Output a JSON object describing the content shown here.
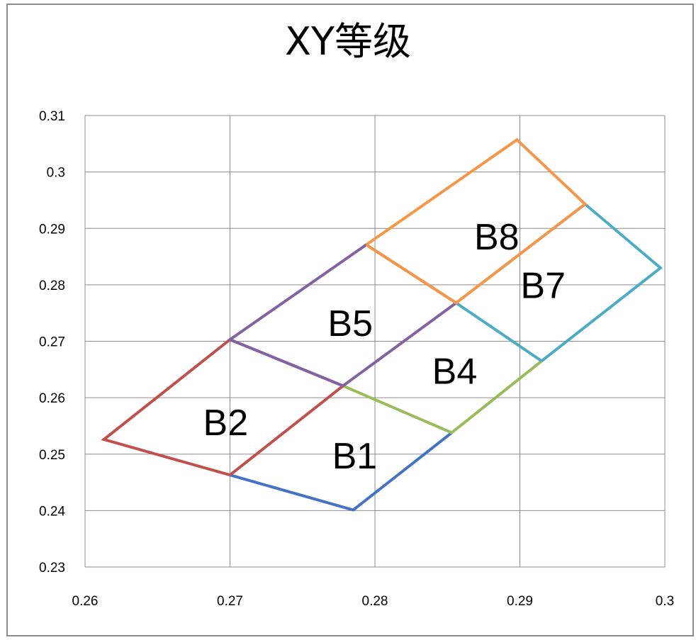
{
  "chart_data": {
    "type": "line",
    "title": "XY等级",
    "xlabel": "",
    "ylabel": "",
    "xlim": [
      0.26,
      0.3
    ],
    "ylim": [
      0.23,
      0.31
    ],
    "x_ticks": [
      "0.26",
      "0.27",
      "0.28",
      "0.29",
      "0.3"
    ],
    "y_ticks": [
      "0.23",
      "0.24",
      "0.25",
      "0.26",
      "0.27",
      "0.28",
      "0.29",
      "0.3",
      "0.31"
    ],
    "grid": true,
    "segments": [
      {
        "color": "#4472C4",
        "x": [
          0.27,
          0.2785,
          0.2853
        ],
        "y": [
          0.2463,
          0.2401,
          0.2538
        ]
      },
      {
        "color": "#9BBB59",
        "x": [
          0.2778,
          0.2853,
          0.2915
        ],
        "y": [
          0.2621,
          0.2538,
          0.2665
        ]
      },
      {
        "color": "#C0504D",
        "x": [
          0.27,
          0.2778,
          0.27,
          0.2613,
          0.27
        ],
        "y": [
          0.2463,
          0.2621,
          0.2703,
          0.2526,
          0.2463
        ]
      },
      {
        "color": "#8064A2",
        "x": [
          0.2778,
          0.2856,
          0.2794,
          0.27,
          0.2778
        ],
        "y": [
          0.2621,
          0.2768,
          0.2871,
          0.2703,
          0.2621
        ]
      },
      {
        "color": "#4BACC6",
        "x": [
          0.2915,
          0.2997,
          0.2945,
          0.2856,
          0.2915
        ],
        "y": [
          0.2665,
          0.283,
          0.2943,
          0.2768,
          0.2665
        ]
      },
      {
        "color": "#F79646",
        "x": [
          0.2794,
          0.2856,
          0.2945,
          0.2898,
          0.2794
        ],
        "y": [
          0.2871,
          0.2768,
          0.2943,
          0.3057,
          0.2871
        ]
      }
    ],
    "region_labels": [
      {
        "text": "B1",
        "x": 0.2786,
        "y": 0.2497
      },
      {
        "text": "B2",
        "x": 0.2697,
        "y": 0.2556
      },
      {
        "text": "B4",
        "x": 0.2855,
        "y": 0.2647
      },
      {
        "text": "B5",
        "x": 0.2783,
        "y": 0.2732
      },
      {
        "text": "B7",
        "x": 0.2916,
        "y": 0.2799
      },
      {
        "text": "B8",
        "x": 0.2884,
        "y": 0.2885
      }
    ]
  }
}
